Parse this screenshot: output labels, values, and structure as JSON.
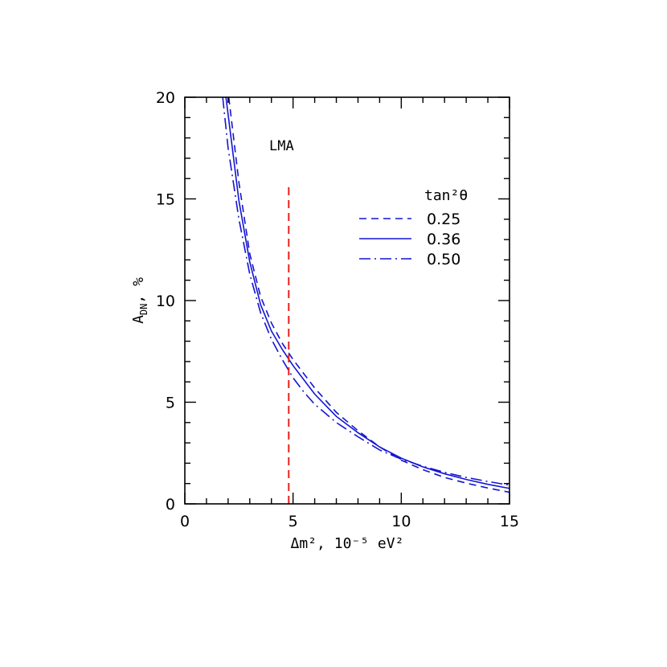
{
  "chart_data": {
    "type": "line",
    "xlabel": "Δm², 10⁻⁵ eV²",
    "ylabel_main": "A",
    "ylabel_sub": "DN",
    "ylabel_suffix": ", %",
    "xlim": [
      0,
      15
    ],
    "ylim": [
      0,
      20
    ],
    "x_ticks": [
      0,
      5,
      10,
      15
    ],
    "y_ticks": [
      0,
      5,
      10,
      15,
      20
    ],
    "annotation": "LMA",
    "legend_title": "tan²θ",
    "legend_position": "upper-right",
    "grid": false,
    "reference_line": {
      "x": 4.8,
      "y_range": [
        0,
        15.8
      ],
      "color": "#e8231e",
      "style": "dashed"
    },
    "series": [
      {
        "name": "0.25",
        "style": "dashed",
        "color": "#1414d2",
        "x": [
          2.03,
          2.5,
          3,
          3.5,
          4,
          4.5,
          5,
          5.5,
          6,
          7,
          8,
          9,
          10,
          11,
          12,
          13,
          14,
          15
        ],
        "y": [
          20.0,
          15.8,
          12.3,
          10.2,
          8.9,
          7.9,
          7.1,
          6.4,
          5.7,
          4.5,
          3.6,
          2.8,
          2.15,
          1.68,
          1.3,
          1.02,
          0.78,
          0.57
        ]
      },
      {
        "name": "0.36",
        "style": "solid",
        "color": "#1414d2",
        "x": [
          1.9,
          2.5,
          3,
          3.5,
          4,
          4.5,
          5,
          5.5,
          6,
          7,
          8,
          9,
          10,
          11,
          12,
          13,
          14,
          15
        ],
        "y": [
          20.0,
          14.9,
          11.9,
          9.8,
          8.5,
          7.6,
          6.8,
          6.1,
          5.4,
          4.3,
          3.5,
          2.8,
          2.25,
          1.82,
          1.48,
          1.2,
          0.96,
          0.76
        ]
      },
      {
        "name": "0.50",
        "style": "dashdot",
        "color": "#1414d2",
        "x": [
          1.75,
          2,
          2.5,
          3,
          3.5,
          4,
          4.5,
          5,
          5.5,
          6,
          7,
          8,
          9,
          10,
          11,
          12,
          13,
          14,
          15
        ],
        "y": [
          20.0,
          17.5,
          14.0,
          11.3,
          9.4,
          8.1,
          7.1,
          6.2,
          5.5,
          4.9,
          4.0,
          3.3,
          2.65,
          2.2,
          1.85,
          1.55,
          1.3,
          1.1,
          0.92
        ]
      }
    ]
  }
}
